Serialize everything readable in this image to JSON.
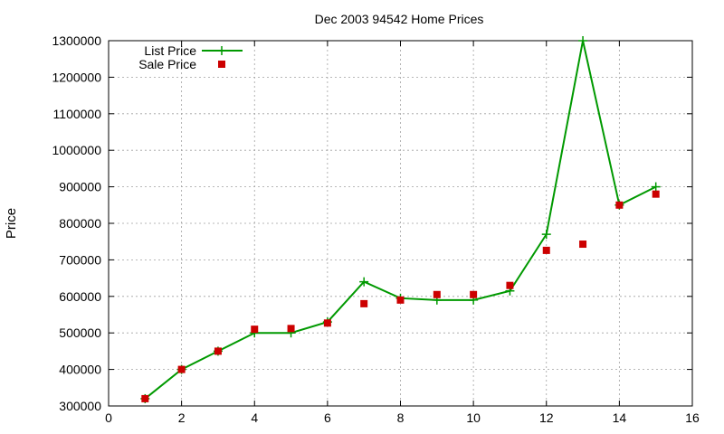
{
  "chart_data": {
    "type": "line",
    "title": "Dec 2003 94542 Home Prices",
    "xlabel": "",
    "ylabel": "Price",
    "xlim": [
      0,
      16
    ],
    "ylim": [
      300000,
      1300000
    ],
    "xticks": [
      0,
      2,
      4,
      6,
      8,
      10,
      12,
      14,
      16
    ],
    "yticks": [
      300000,
      400000,
      500000,
      600000,
      700000,
      800000,
      900000,
      1000000,
      1100000,
      1200000,
      1300000
    ],
    "grid": true,
    "legend_position": "top-left",
    "series": [
      {
        "name": "List Price",
        "style": "linespoints",
        "marker": "plus",
        "color": "#009900",
        "x": [
          1,
          2,
          3,
          4,
          5,
          6,
          7,
          8,
          9,
          10,
          11,
          12,
          13,
          14,
          15
        ],
        "values": [
          320000,
          400000,
          450000,
          500000,
          500000,
          530000,
          640000,
          595000,
          590000,
          590000,
          615000,
          770000,
          1300000,
          850000,
          900000
        ]
      },
      {
        "name": "Sale Price",
        "style": "points",
        "marker": "square",
        "color": "#cc0000",
        "x": [
          1,
          2,
          3,
          4,
          5,
          6,
          7,
          8,
          9,
          10,
          11,
          12,
          13,
          14,
          15
        ],
        "values": [
          320000,
          400000,
          450000,
          510000,
          512000,
          527000,
          580000,
          590000,
          605000,
          605000,
          630000,
          726000,
          743000,
          850000,
          880000
        ]
      }
    ]
  }
}
